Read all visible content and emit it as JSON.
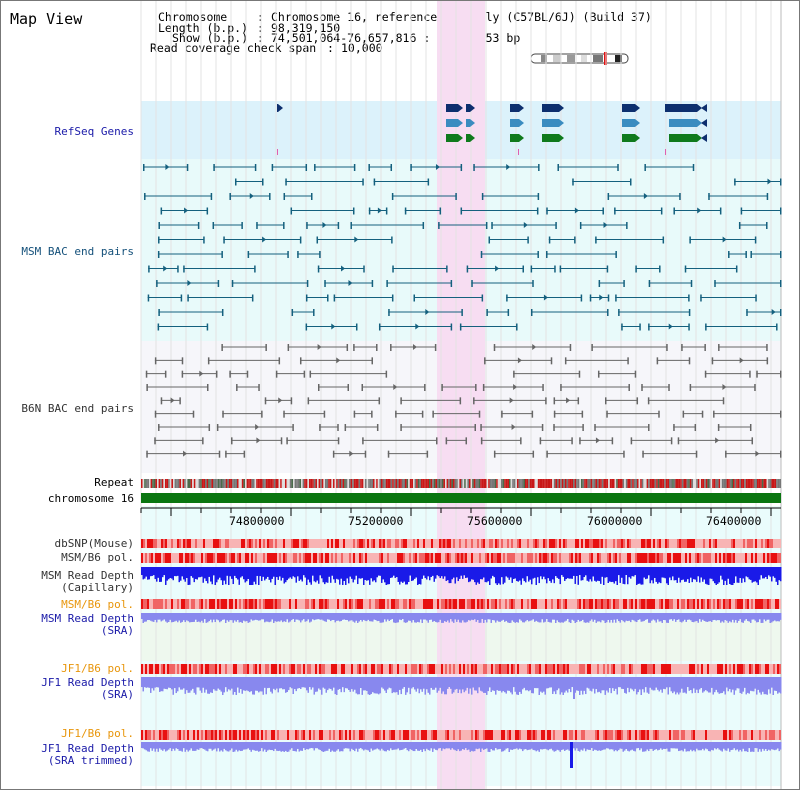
{
  "header": {
    "title": "Map View",
    "chromosome_label": "Chromosome",
    "chromosome_value": "Chromosome 16, reference assembly (C57BL/6J) (Build 37)",
    "length_label": "Length (b.p.)",
    "length_value": "98,319,150",
    "show_label": "Show (b.p.)",
    "show_value": "74,501,064-76,657,816 : 2,156,753 bp",
    "coverage_label": "Read coverage check span",
    "coverage_value": "10,000"
  },
  "tracks": {
    "refseq": "RefSeq Genes",
    "msm_bac": "MSM BAC end pairs",
    "b6n_bac": "B6N BAC end pairs",
    "repeat": "Repeat",
    "chromosome": "chromosome 16",
    "dbsnp": "dbSNP(Mouse)",
    "msm_b6_pol": "MSM/B6 pol.",
    "msm_depth_1": "MSM Read Depth",
    "msm_depth_1b": "(Capillary)",
    "msm_b6_pol_sra": "MSM/B6 pol.",
    "msm_depth_2": "MSM Read Depth",
    "msm_depth_2b": "(SRA)",
    "jf1_pol_1": "JF1/B6 pol.",
    "jf1_depth_1": "JF1 Read Depth",
    "jf1_depth_1b": "(SRA)",
    "jf1_pol_2": "JF1/B6 pol.",
    "jf1_depth_2": "JF1 Read Depth",
    "jf1_depth_2b": "(SRA trimmed)"
  },
  "axis": {
    "ticks": [
      "74800000",
      "75200000",
      "75600000",
      "76000000",
      "76400000"
    ]
  },
  "colors": {
    "highlight": "#f7ddf2",
    "refseq_bg": "#dcf2fb",
    "msm_bg": "#e8fafa",
    "b6n_bg": "#f6f6fa",
    "gene_dark": "#0d2f6e",
    "gene_mid": "#3a8cc0",
    "gene_green": "#0f7a1c",
    "chromosome_bar": "#0a7510",
    "depth_dark": "#1a1ae8",
    "depth_light": "#8888ee"
  }
}
